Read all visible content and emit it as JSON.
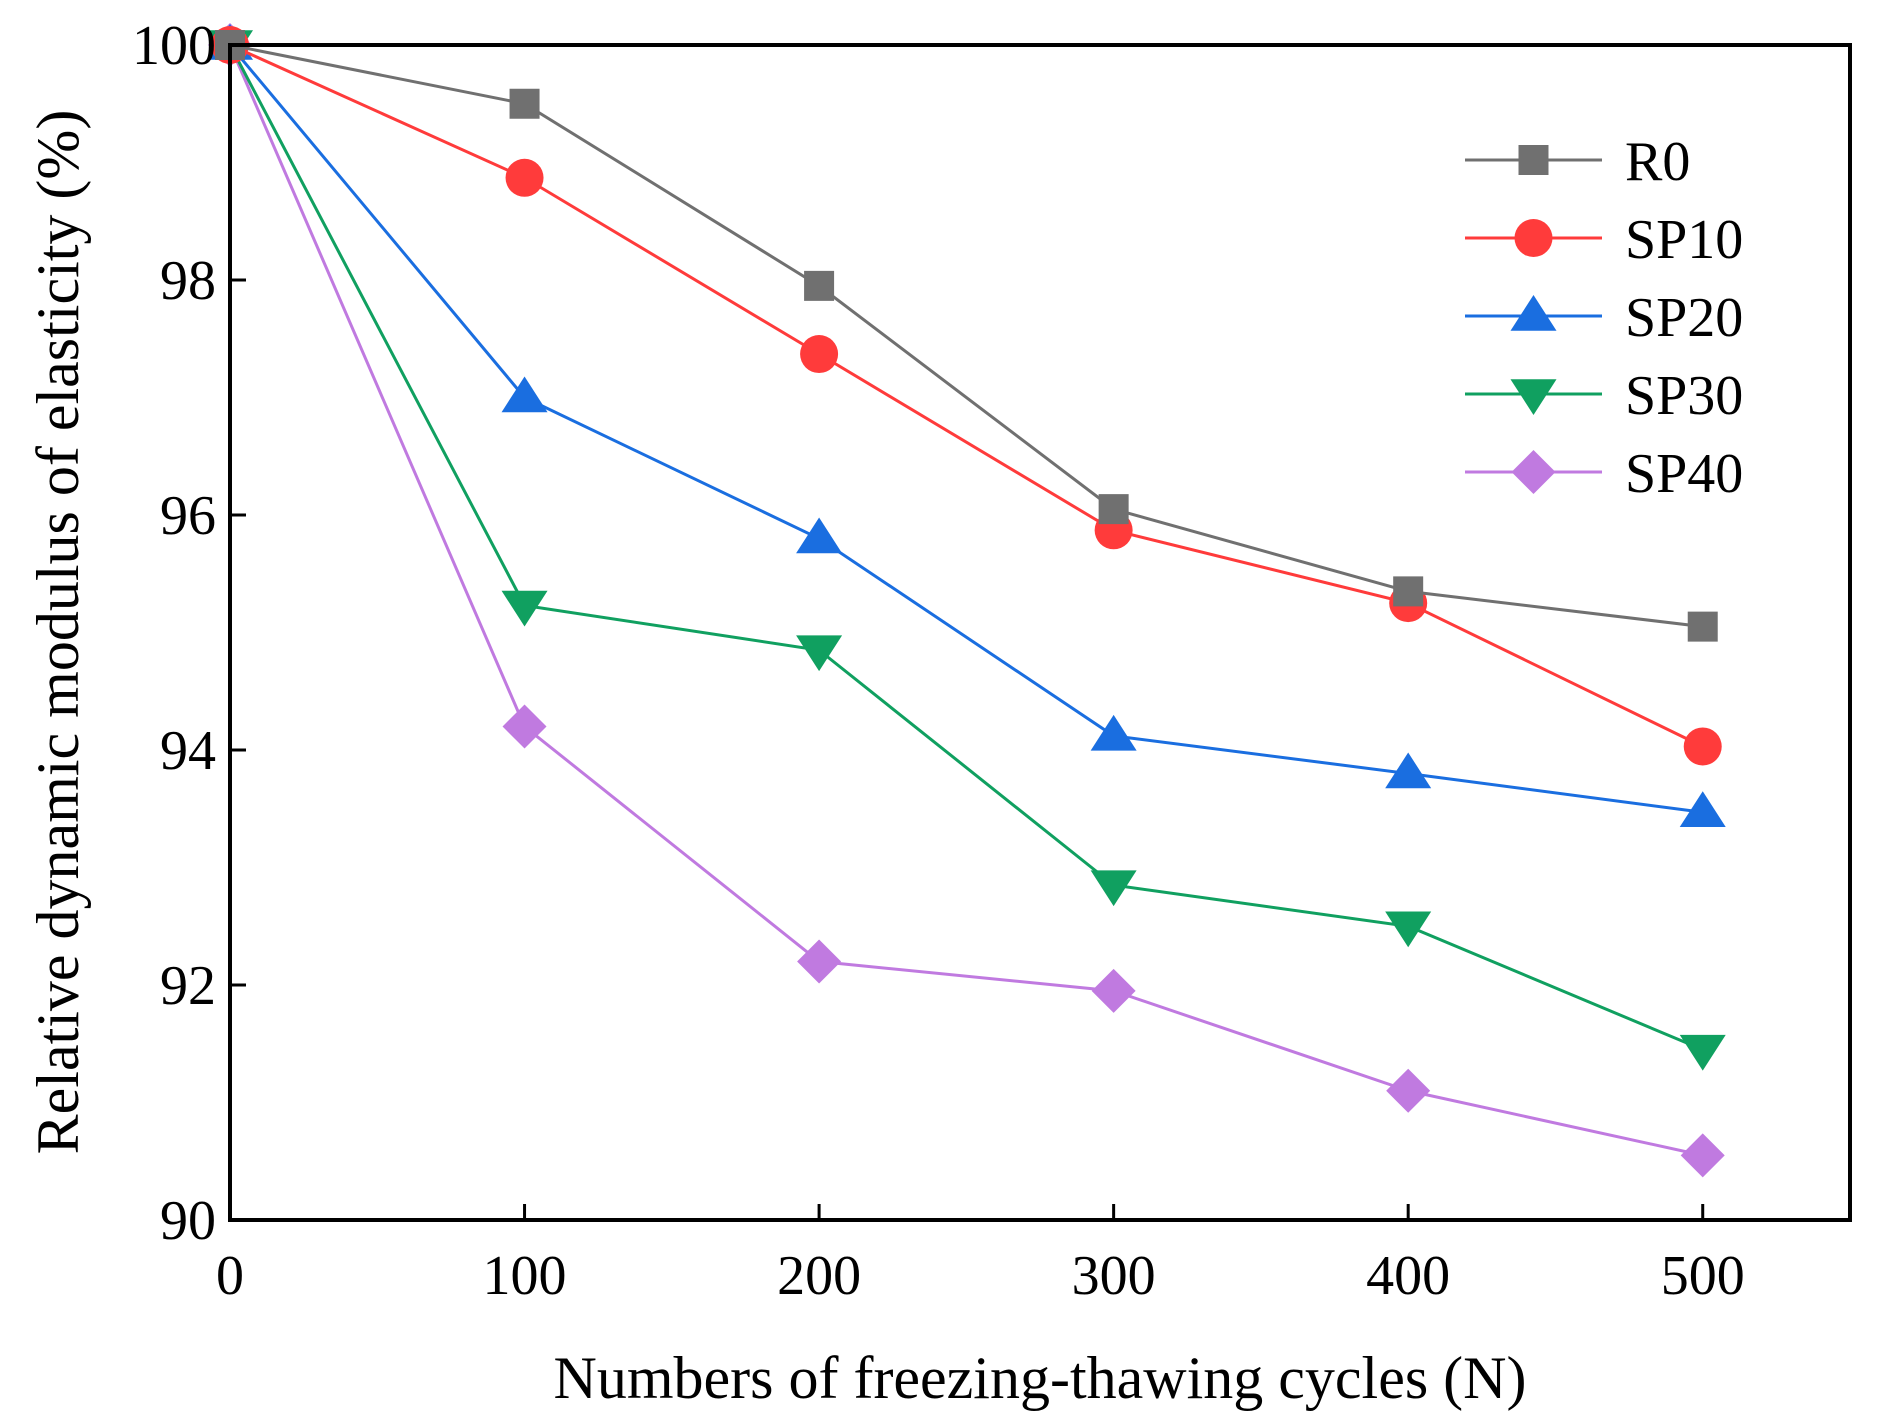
{
  "chart_data": {
    "type": "line",
    "title": "",
    "xlabel": "Numbers of freezing-thawing cycles (N)",
    "ylabel": "Relative dynamic modulus of elasticity (%)",
    "xlim": [
      0,
      550
    ],
    "ylim": [
      90,
      100
    ],
    "xticks": [
      0,
      100,
      200,
      300,
      400,
      500
    ],
    "yticks": [
      90,
      92,
      94,
      96,
      98,
      100
    ],
    "x": [
      0,
      100,
      200,
      300,
      400,
      500
    ],
    "grid": false,
    "legend_position": "top-right",
    "series": [
      {
        "name": "R0",
        "color": "#707070",
        "marker": "square",
        "values": [
          100,
          99.5,
          97.95,
          96.05,
          95.35,
          95.05
        ]
      },
      {
        "name": "SP10",
        "color": "#ff3b3b",
        "marker": "circle",
        "values": [
          100,
          98.87,
          97.37,
          95.87,
          95.25,
          94.03
        ]
      },
      {
        "name": "SP20",
        "color": "#1a6ee0",
        "marker": "triangle-up",
        "values": [
          100,
          97.0,
          95.8,
          94.12,
          93.8,
          93.47
        ]
      },
      {
        "name": "SP30",
        "color": "#10a060",
        "marker": "triangle-down",
        "values": [
          100,
          95.23,
          94.85,
          92.85,
          92.5,
          91.45
        ]
      },
      {
        "name": "SP40",
        "color": "#c07ae0",
        "marker": "diamond",
        "values": [
          100,
          94.2,
          92.2,
          91.95,
          91.1,
          90.55
        ]
      }
    ]
  }
}
